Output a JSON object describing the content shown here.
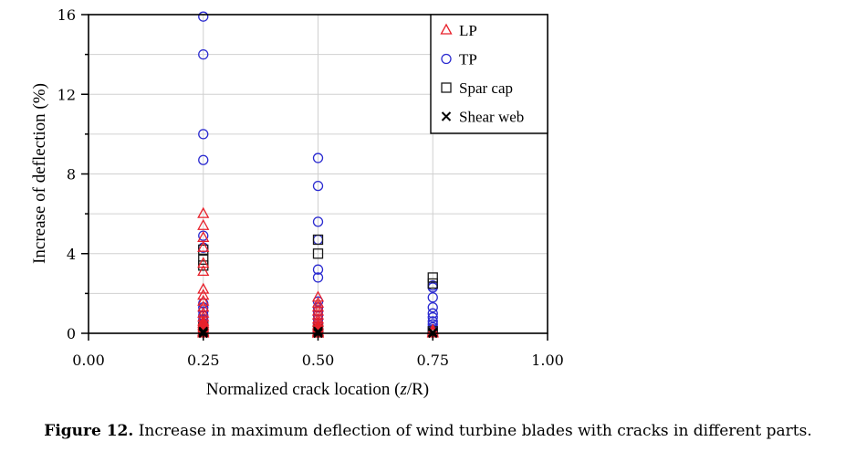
{
  "chart_data": {
    "type": "scatter",
    "title": "",
    "xlabel": "Normalized crack location (",
    "xlabel_var": "z",
    "xlabel_tail": "/R)",
    "ylabel": "Increase of deflection (%)",
    "xlim": [
      0.0,
      1.0
    ],
    "ylim": [
      0,
      16
    ],
    "xticks": [
      0.0,
      0.25,
      0.5,
      0.75,
      1.0
    ],
    "xtick_labels": [
      "0.00",
      "0.25",
      "0.50",
      "0.75",
      "1.00"
    ],
    "yticks": [
      0,
      4,
      8,
      12,
      16
    ],
    "ytick_labels": [
      "0",
      "4",
      "8",
      "12",
      "16"
    ],
    "grid": true,
    "legend_position": "top-right",
    "series": [
      {
        "name": "LP",
        "marker": "triangle",
        "color": "#e8212b",
        "x": [
          0.25,
          0.25,
          0.25,
          0.25,
          0.25,
          0.25,
          0.25,
          0.25,
          0.25,
          0.25,
          0.25,
          0.25,
          0.25,
          0.25,
          0.25,
          0.25,
          0.25,
          0.25,
          0.25,
          0.25,
          0.5,
          0.5,
          0.5,
          0.5,
          0.5,
          0.5,
          0.5,
          0.5,
          0.5,
          0.5,
          0.5,
          0.5,
          0.5,
          0.5,
          0.75,
          0.75,
          0.75
        ],
        "y": [
          6.0,
          5.4,
          4.8,
          4.3,
          3.5,
          3.1,
          2.2,
          1.9,
          1.6,
          1.3,
          1.0,
          0.8,
          0.6,
          0.5,
          0.4,
          0.3,
          0.2,
          0.1,
          0.05,
          0.0,
          1.8,
          1.5,
          1.3,
          1.1,
          0.9,
          0.7,
          0.55,
          0.4,
          0.3,
          0.2,
          0.1,
          0.05,
          0.0,
          0.0,
          0.15,
          0.05,
          0.0
        ]
      },
      {
        "name": "TP",
        "marker": "circle",
        "color": "#2b2bd0",
        "x": [
          0.25,
          0.25,
          0.25,
          0.25,
          0.25,
          0.25,
          0.25,
          0.25,
          0.25,
          0.25,
          0.25,
          0.25,
          0.25,
          0.25,
          0.25,
          0.5,
          0.5,
          0.5,
          0.5,
          0.5,
          0.5,
          0.5,
          0.5,
          0.5,
          0.5,
          0.5,
          0.5,
          0.5,
          0.5,
          0.5,
          0.5,
          0.75,
          0.75,
          0.75,
          0.75,
          0.75,
          0.75,
          0.75,
          0.75,
          0.75,
          0.75,
          0.75,
          0.75
        ],
        "y": [
          15.9,
          14.0,
          10.0,
          8.7,
          4.9,
          4.3,
          1.5,
          1.3,
          1.1,
          0.9,
          0.7,
          0.5,
          0.35,
          0.2,
          0.1,
          8.8,
          7.4,
          5.6,
          4.7,
          3.2,
          2.8,
          1.6,
          1.3,
          1.1,
          0.9,
          0.7,
          0.5,
          0.35,
          0.2,
          0.1,
          0.05,
          2.4,
          2.3,
          1.8,
          1.3,
          1.0,
          0.8,
          0.6,
          0.45,
          0.3,
          0.2,
          0.1,
          0.05
        ]
      },
      {
        "name": "Spar cap",
        "marker": "square",
        "color": "#1a1a1a",
        "x": [
          0.25,
          0.25,
          0.25,
          0.25,
          0.25,
          0.5,
          0.5,
          0.5,
          0.75,
          0.75,
          0.75
        ],
        "y": [
          4.2,
          3.7,
          3.4,
          0.3,
          0.1,
          4.7,
          4.0,
          0.2,
          2.8,
          2.5,
          0.1
        ]
      },
      {
        "name": "Shear web",
        "marker": "cross",
        "color": "#000000",
        "x": [
          0.25,
          0.25,
          0.25,
          0.5,
          0.5,
          0.5,
          0.75,
          0.75
        ],
        "y": [
          0.1,
          0.05,
          0.0,
          0.1,
          0.05,
          0.0,
          0.05,
          0.0
        ]
      }
    ]
  },
  "caption": {
    "label": "Figure 12.",
    "text": " Increase in maximum deflection of wind turbine blades with cracks in different parts."
  }
}
